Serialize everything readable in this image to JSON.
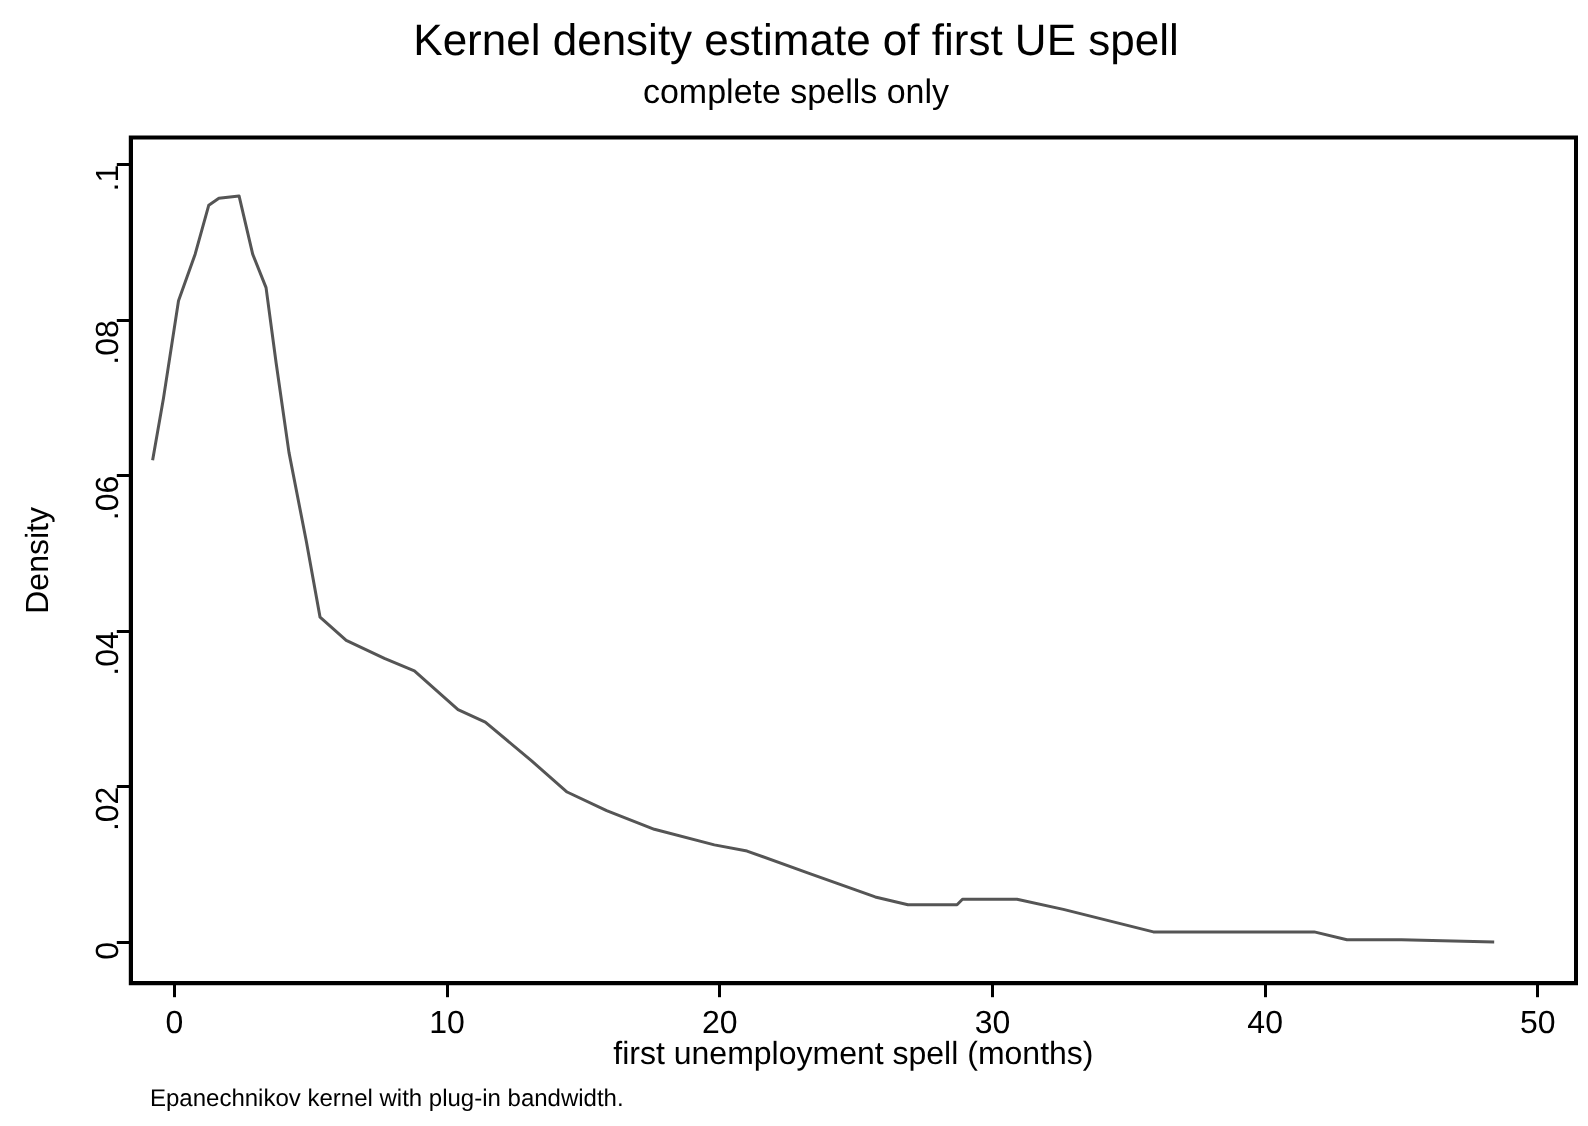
{
  "chart_data": {
    "type": "line",
    "title": "Kernel density estimate of first UE spell",
    "subtitle": "complete spells only",
    "xlabel": "first unemployment spell (months)",
    "ylabel": "Density",
    "annotations": [
      "Epanechnikov kernel with plug-in bandwidth."
    ],
    "x": [
      -0.8,
      -0.4,
      0.15,
      0.76,
      1.26,
      1.63,
      2.37,
      2.87,
      3.36,
      3.73,
      4.2,
      4.84,
      5.34,
      6.3,
      7.7,
      8.8,
      10.4,
      11.4,
      13.1,
      14.4,
      15.85,
      17.6,
      19.8,
      21.0,
      23.3,
      25.7,
      26.9,
      28.7,
      28.9,
      30.9,
      32.6,
      35.9,
      41.8,
      43.0,
      45.0,
      48.4
    ],
    "series": [
      {
        "color": "#555555",
        "values": [
          0.062,
          0.07,
          0.0825,
          0.0885,
          0.0948,
          0.0957,
          0.096,
          0.0885,
          0.0842,
          0.0745,
          0.063,
          0.0515,
          0.0418,
          0.0388,
          0.0365,
          0.0349,
          0.0299,
          0.0283,
          0.0233,
          0.0193,
          0.0169,
          0.0145,
          0.0125,
          0.0117,
          0.0088,
          0.0058,
          0.0048,
          0.0048,
          0.0055,
          0.0055,
          0.0042,
          0.0013,
          0.0013,
          0.0003,
          0.0003,
          0
        ]
      }
    ],
    "xlim": [
      -1.6,
      51.4
    ],
    "xticks": [
      0,
      10,
      20,
      30,
      40,
      50
    ],
    "ylim": [
      -0.0053,
      0.1035
    ],
    "yticks": [
      {
        "value": 0,
        "label": "0"
      },
      {
        "value": 0.02,
        "label": ".02"
      },
      {
        "value": 0.04,
        "label": ".04"
      },
      {
        "value": 0.06,
        "label": ".06"
      },
      {
        "value": 0.08,
        "label": ".08"
      },
      {
        "value": 0.1,
        "label": ".1"
      }
    ],
    "grid": false,
    "legend": false,
    "marker": "none",
    "line_style": "solid"
  }
}
